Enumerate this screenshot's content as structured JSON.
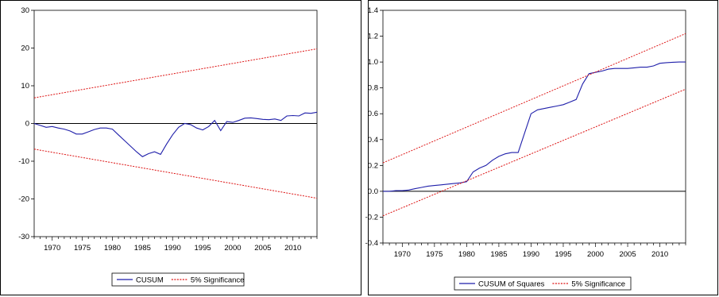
{
  "chart_data": [
    {
      "type": "line",
      "title": "",
      "xlabel": "",
      "ylabel": "",
      "xlim": [
        1967,
        2014
      ],
      "ylim": [
        -30,
        30
      ],
      "x_ticks": [
        1970,
        1975,
        1980,
        1985,
        1990,
        1995,
        2000,
        2005,
        2010
      ],
      "y_ticks": [
        -30,
        -20,
        -10,
        0,
        10,
        20,
        30
      ],
      "grid": false,
      "zero_line": true,
      "legend": "bottom-center",
      "series": [
        {
          "name": "CUSUM",
          "color": "#1f1faa",
          "style": "solid",
          "x": [
            1967,
            1968,
            1969,
            1970,
            1971,
            1972,
            1973,
            1974,
            1975,
            1976,
            1977,
            1978,
            1979,
            1980,
            1981,
            1982,
            1983,
            1984,
            1985,
            1986,
            1987,
            1988,
            1989,
            1990,
            1991,
            1992,
            1993,
            1994,
            1995,
            1996,
            1997,
            1998,
            1999,
            2000,
            2001,
            2002,
            2003,
            2004,
            2005,
            2006,
            2007,
            2008,
            2009,
            2010,
            2011,
            2012,
            2013,
            2014
          ],
          "y": [
            0,
            -0.5,
            -1,
            -0.8,
            -1.2,
            -1.5,
            -2,
            -2.8,
            -2.8,
            -2.2,
            -1.6,
            -1.2,
            -1.2,
            -1.5,
            -3,
            -4.5,
            -6,
            -7.5,
            -8.8,
            -8,
            -7.5,
            -8.2,
            -5.5,
            -3,
            -1,
            0,
            -0.3,
            -1.2,
            -1.7,
            -0.8,
            0.8,
            -1.9,
            0.5,
            0.3,
            0.8,
            1.4,
            1.5,
            1.3,
            1.1,
            1,
            1.2,
            0.8,
            2,
            2.1,
            2,
            2.8,
            2.7,
            3
          ]
        },
        {
          "name": "5% Significance",
          "color": "#dd1111",
          "style": "dashed",
          "x": [
            1967,
            2014
          ],
          "y": [
            6.8,
            19.8
          ]
        },
        {
          "name": "",
          "color": "#dd1111",
          "style": "dashed",
          "x": [
            1967,
            2014
          ],
          "y": [
            -6.8,
            -19.8
          ]
        }
      ],
      "legend_entries": [
        "CUSUM",
        "5% Significance"
      ]
    },
    {
      "type": "line",
      "title": "",
      "xlabel": "",
      "ylabel": "",
      "xlim": [
        1967,
        2014
      ],
      "ylim": [
        -0.4,
        1.4
      ],
      "x_ticks": [
        1970,
        1975,
        1980,
        1985,
        1990,
        1995,
        2000,
        2005,
        2010
      ],
      "y_ticks": [
        "-0.4",
        "-0.2",
        "0.0",
        "0.2",
        "0.4",
        "0.6",
        "0.8",
        "1.0",
        "1.2",
        "1.4"
      ],
      "grid": false,
      "zero_line": true,
      "legend": "bottom-center",
      "series": [
        {
          "name": "CUSUM of Squares",
          "color": "#1f1faa",
          "style": "solid",
          "x": [
            1967,
            1968,
            1969,
            1970,
            1971,
            1972,
            1973,
            1974,
            1975,
            1976,
            1977,
            1978,
            1979,
            1980,
            1981,
            1982,
            1983,
            1984,
            1985,
            1986,
            1987,
            1988,
            1989,
            1990,
            1991,
            1992,
            1993,
            1994,
            1995,
            1996,
            1997,
            1998,
            1999,
            2000,
            2001,
            2002,
            2003,
            2004,
            2005,
            2006,
            2007,
            2008,
            2009,
            2010,
            2011,
            2012,
            2013,
            2014
          ],
          "y": [
            0,
            0,
            0.005,
            0.005,
            0.01,
            0.02,
            0.03,
            0.04,
            0.045,
            0.05,
            0.055,
            0.06,
            0.065,
            0.075,
            0.15,
            0.18,
            0.2,
            0.24,
            0.27,
            0.29,
            0.3,
            0.3,
            0.45,
            0.6,
            0.63,
            0.64,
            0.65,
            0.66,
            0.67,
            0.69,
            0.71,
            0.83,
            0.91,
            0.92,
            0.93,
            0.945,
            0.95,
            0.95,
            0.95,
            0.955,
            0.96,
            0.96,
            0.97,
            0.99,
            0.995,
            0.998,
            1,
            1
          ]
        },
        {
          "name": "5% Significance",
          "color": "#dd1111",
          "style": "dashed",
          "x": [
            1967,
            2014
          ],
          "y": [
            0.22,
            1.22
          ]
        },
        {
          "name": "",
          "color": "#dd1111",
          "style": "dashed",
          "x": [
            1967,
            2014
          ],
          "y": [
            -0.19,
            0.79
          ]
        }
      ],
      "legend_entries": [
        "CUSUM of Squares",
        "5% Significance"
      ]
    }
  ]
}
